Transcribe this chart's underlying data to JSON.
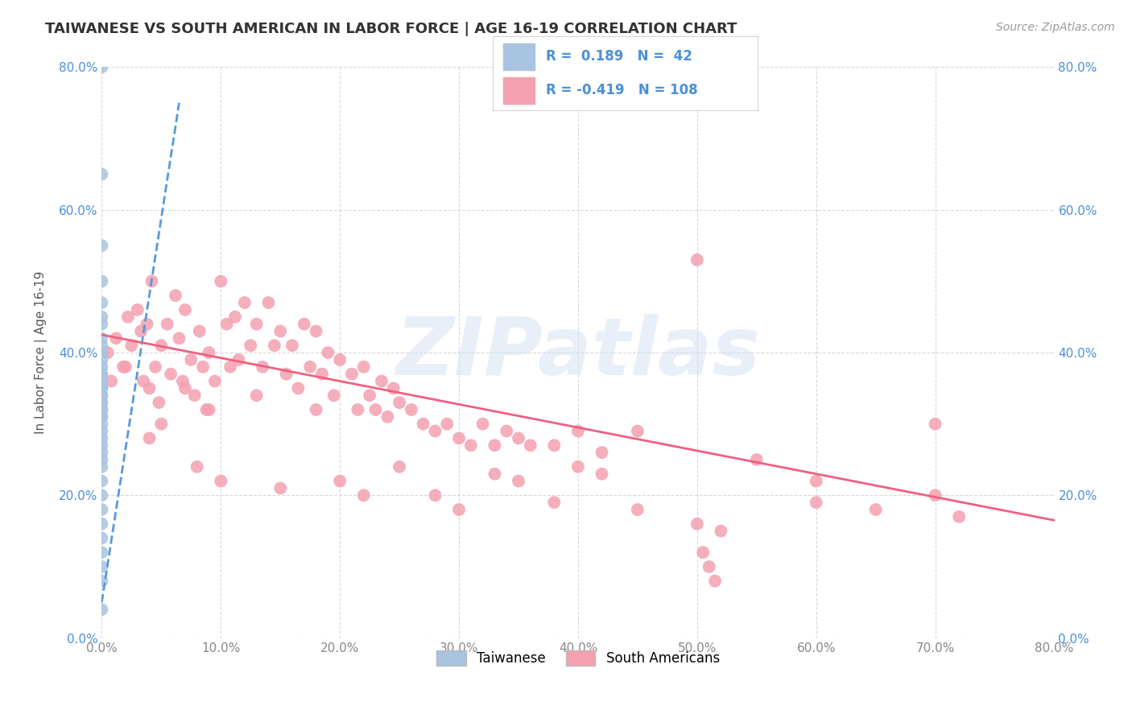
{
  "title": "TAIWANESE VS SOUTH AMERICAN IN LABOR FORCE | AGE 16-19 CORRELATION CHART",
  "source": "Source: ZipAtlas.com",
  "ylabel": "In Labor Force | Age 16-19",
  "watermark": "ZIPatlas",
  "xlim": [
    0.0,
    0.8
  ],
  "ylim": [
    0.0,
    0.8
  ],
  "xticks": [
    0.0,
    0.1,
    0.2,
    0.3,
    0.4,
    0.5,
    0.6,
    0.7,
    0.8
  ],
  "yticks": [
    0.0,
    0.2,
    0.4,
    0.6,
    0.8
  ],
  "xtick_labels": [
    "0.0%",
    "10.0%",
    "20.0%",
    "30.0%",
    "40.0%",
    "50.0%",
    "60.0%",
    "70.0%",
    "80.0%"
  ],
  "ytick_labels": [
    "0.0%",
    "20.0%",
    "40.0%",
    "60.0%",
    "80.0%"
  ],
  "background_color": "#ffffff",
  "grid_color": "#d8d8d8",
  "blue_scatter_color": "#a8c4e0",
  "pink_scatter_color": "#f4a0b0",
  "blue_line_color": "#5599dd",
  "pink_line_color": "#f06080",
  "R_blue": 0.189,
  "N_blue": 42,
  "R_pink": -0.419,
  "N_pink": 108,
  "legend_label_blue": "Taiwanese",
  "legend_label_pink": "South Americans",
  "blue_line_x": [
    0.0,
    0.065
  ],
  "blue_line_y": [
    0.05,
    0.75
  ],
  "pink_line_x": [
    0.0,
    0.8
  ],
  "pink_line_y": [
    0.425,
    0.165
  ],
  "taiwanese_x": [
    0.0,
    0.0,
    0.0,
    0.0,
    0.0,
    0.0,
    0.0,
    0.0,
    0.0,
    0.0,
    0.0,
    0.0,
    0.0,
    0.0,
    0.0,
    0.0,
    0.0,
    0.0,
    0.0,
    0.0,
    0.0,
    0.0,
    0.0,
    0.0,
    0.0,
    0.0,
    0.0,
    0.0,
    0.0,
    0.0,
    0.0,
    0.0,
    0.0,
    0.0,
    0.0,
    0.0,
    0.0,
    0.0,
    0.0,
    0.0,
    0.0,
    0.0
  ],
  "taiwanese_y": [
    0.8,
    0.65,
    0.55,
    0.5,
    0.47,
    0.45,
    0.44,
    0.42,
    0.41,
    0.4,
    0.39,
    0.38,
    0.37,
    0.37,
    0.36,
    0.36,
    0.35,
    0.35,
    0.34,
    0.34,
    0.33,
    0.33,
    0.32,
    0.32,
    0.31,
    0.31,
    0.3,
    0.29,
    0.28,
    0.27,
    0.26,
    0.25,
    0.24,
    0.22,
    0.2,
    0.18,
    0.16,
    0.14,
    0.12,
    0.1,
    0.08,
    0.04
  ],
  "south_american_x": [
    0.005,
    0.008,
    0.012,
    0.018,
    0.022,
    0.025,
    0.03,
    0.033,
    0.035,
    0.038,
    0.04,
    0.042,
    0.045,
    0.048,
    0.05,
    0.055,
    0.058,
    0.062,
    0.065,
    0.068,
    0.07,
    0.075,
    0.078,
    0.082,
    0.085,
    0.088,
    0.09,
    0.095,
    0.1,
    0.105,
    0.108,
    0.112,
    0.115,
    0.12,
    0.125,
    0.13,
    0.135,
    0.14,
    0.145,
    0.15,
    0.155,
    0.16,
    0.165,
    0.17,
    0.175,
    0.18,
    0.185,
    0.19,
    0.195,
    0.2,
    0.21,
    0.215,
    0.22,
    0.225,
    0.23,
    0.235,
    0.24,
    0.245,
    0.25,
    0.26,
    0.27,
    0.28,
    0.29,
    0.3,
    0.31,
    0.32,
    0.33,
    0.34,
    0.35,
    0.36,
    0.38,
    0.4,
    0.42,
    0.45,
    0.5,
    0.505,
    0.51,
    0.515,
    0.52,
    0.6,
    0.7,
    0.05,
    0.08,
    0.1,
    0.13,
    0.15,
    0.18,
    0.2,
    0.22,
    0.25,
    0.28,
    0.3,
    0.33,
    0.35,
    0.38,
    0.4,
    0.42,
    0.45,
    0.5,
    0.55,
    0.6,
    0.65,
    0.7,
    0.72,
    0.02,
    0.04,
    0.07,
    0.09
  ],
  "south_american_y": [
    0.4,
    0.36,
    0.42,
    0.38,
    0.45,
    0.41,
    0.46,
    0.43,
    0.36,
    0.44,
    0.35,
    0.5,
    0.38,
    0.33,
    0.41,
    0.44,
    0.37,
    0.48,
    0.42,
    0.36,
    0.46,
    0.39,
    0.34,
    0.43,
    0.38,
    0.32,
    0.4,
    0.36,
    0.5,
    0.44,
    0.38,
    0.45,
    0.39,
    0.47,
    0.41,
    0.44,
    0.38,
    0.47,
    0.41,
    0.43,
    0.37,
    0.41,
    0.35,
    0.44,
    0.38,
    0.43,
    0.37,
    0.4,
    0.34,
    0.39,
    0.37,
    0.32,
    0.38,
    0.34,
    0.32,
    0.36,
    0.31,
    0.35,
    0.33,
    0.32,
    0.3,
    0.29,
    0.3,
    0.28,
    0.27,
    0.3,
    0.27,
    0.29,
    0.28,
    0.27,
    0.27,
    0.29,
    0.26,
    0.29,
    0.53,
    0.12,
    0.1,
    0.08,
    0.15,
    0.19,
    0.3,
    0.3,
    0.24,
    0.22,
    0.34,
    0.21,
    0.32,
    0.22,
    0.2,
    0.24,
    0.2,
    0.18,
    0.23,
    0.22,
    0.19,
    0.24,
    0.23,
    0.18,
    0.16,
    0.25,
    0.22,
    0.18,
    0.2,
    0.17,
    0.38,
    0.28,
    0.35,
    0.32
  ]
}
